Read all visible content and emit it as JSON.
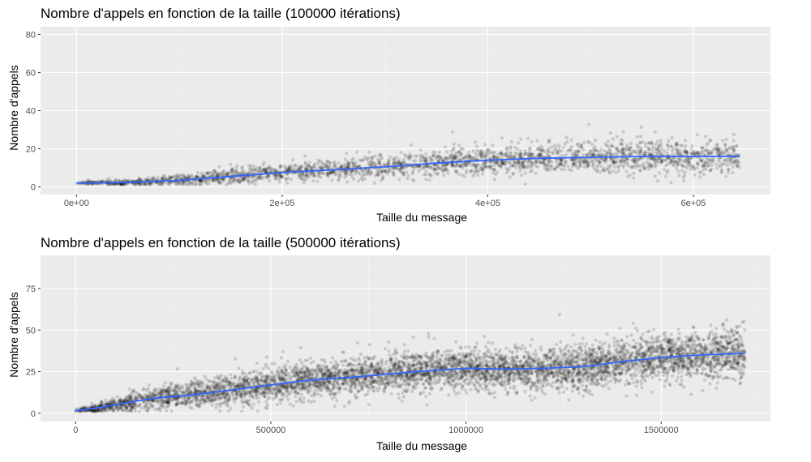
{
  "chart_data": [
    {
      "type": "scatter",
      "title": "Nombre d'appels en fonction de la taille (100000 itérations)",
      "xlabel": "Taille du message",
      "ylabel": "Nombre d'appels",
      "xlim": [
        -35000,
        675000
      ],
      "ylim": [
        -4,
        84
      ],
      "x_ticks": [
        0,
        200000,
        400000,
        600000
      ],
      "x_tick_labels": [
        "0e+00",
        "2e+05",
        "4e+05",
        "6e+05"
      ],
      "y_ticks": [
        0,
        20,
        40,
        60,
        80
      ],
      "y_tick_labels": [
        "0",
        "20",
        "40",
        "60",
        "80"
      ],
      "grid": true,
      "legend": "none",
      "point_color": "#000000",
      "point_alpha": 0.15,
      "smooth_color": "#3366ff",
      "n_points": 2600,
      "x_max": 645000,
      "trend": {
        "x": [
          0,
          50000,
          100000,
          150000,
          200000,
          250000,
          300000,
          350000,
          400000,
          450000,
          500000,
          550000,
          600000,
          645000
        ],
        "y": [
          2,
          2.3,
          3.5,
          5.5,
          7.5,
          9,
          10.5,
          12.5,
          14,
          15,
          15.5,
          16,
          16,
          16
        ]
      },
      "spread": {
        "x": [
          0,
          50000,
          100000,
          200000,
          300000,
          400000,
          500000,
          645000
        ],
        "sd": [
          0.3,
          0.8,
          1.5,
          2.5,
          3,
          3.5,
          4,
          4.5
        ]
      }
    },
    {
      "type": "scatter",
      "title": "Nombre d'appels en fonction de la taille (500000 itérations)",
      "xlabel": "Taille du message",
      "ylabel": "Nombre d'appels",
      "xlim": [
        -90000,
        1780000
      ],
      "ylim": [
        -5,
        95
      ],
      "x_ticks": [
        0,
        500000,
        1000000,
        1500000
      ],
      "x_tick_labels": [
        "0",
        "500000",
        "1000000",
        "1500000"
      ],
      "y_ticks": [
        0,
        25,
        50,
        75
      ],
      "y_tick_labels": [
        "0",
        "25",
        "50",
        "75"
      ],
      "grid": true,
      "legend": "none",
      "point_color": "#000000",
      "point_alpha": 0.15,
      "smooth_color": "#3366ff",
      "n_points": 5500,
      "x_max": 1715000,
      "trend": {
        "x": [
          0,
          50000,
          100000,
          200000,
          300000,
          400000,
          500000,
          600000,
          700000,
          800000,
          900000,
          1000000,
          1100000,
          1200000,
          1300000,
          1400000,
          1500000,
          1600000,
          1715000
        ],
        "y": [
          1.5,
          3,
          5,
          9,
          11,
          14,
          17,
          20,
          21.5,
          23.5,
          25.5,
          27,
          26.5,
          27,
          28,
          31,
          33.5,
          35,
          36
        ]
      },
      "spread": {
        "x": [
          0,
          100000,
          200000,
          500000,
          1000000,
          1500000,
          1715000
        ],
        "sd": [
          0.5,
          2,
          3.5,
          5,
          6,
          7,
          7.5
        ]
      }
    }
  ]
}
